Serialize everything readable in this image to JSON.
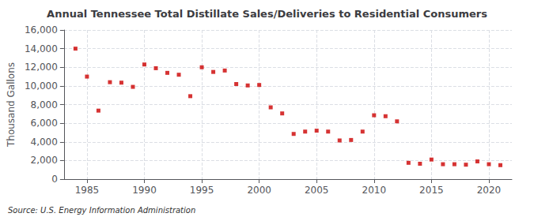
{
  "chart_data": {
    "type": "scatter",
    "title": "Annual Tennessee Total Distillate Sales/Deliveries to Residential Consumers",
    "ylabel": "Thousand Gallons",
    "annotations": [
      "Source: U.S. Energy Information Administration"
    ],
    "x": [
      1984,
      1985,
      1986,
      1987,
      1988,
      1989,
      1990,
      1991,
      1992,
      1993,
      1994,
      1995,
      1996,
      1997,
      1998,
      1999,
      2000,
      2001,
      2002,
      2003,
      2004,
      2005,
      2006,
      2007,
      2008,
      2009,
      2010,
      2011,
      2012,
      2013,
      2014,
      2015,
      2016,
      2017,
      2018,
      2019,
      2020,
      2021
    ],
    "values": [
      14000,
      11000,
      7350,
      10400,
      10350,
      9900,
      12300,
      11900,
      11400,
      11200,
      8900,
      12000,
      11500,
      11650,
      10200,
      10050,
      10100,
      7700,
      7050,
      4850,
      5100,
      5200,
      5100,
      4150,
      4200,
      5100,
      6850,
      6750,
      6200,
      1750,
      1650,
      2100,
      1600,
      1600,
      1550,
      1900,
      1600,
      1500
    ],
    "color": "#cc0000",
    "marker": "square",
    "xlim": [
      1983.0,
      2022.0
    ],
    "xticks": [
      1985,
      1990,
      1995,
      2000,
      2005,
      2010,
      2015,
      2020
    ],
    "ylim": [
      0,
      16000
    ],
    "yticks": [
      0,
      {
        "value": 2000,
        "label": "2,000"
      },
      {
        "value": 4000,
        "label": "4,000"
      },
      {
        "value": 6000,
        "label": "6,000"
      },
      {
        "value": 8000,
        "label": "8,000"
      },
      {
        "value": 10000,
        "label": "10,000"
      },
      {
        "value": 12000,
        "label": "12,000"
      },
      {
        "value": 14000,
        "label": "14,000"
      },
      {
        "value": 16000,
        "label": "16,000"
      }
    ],
    "grid": true
  }
}
